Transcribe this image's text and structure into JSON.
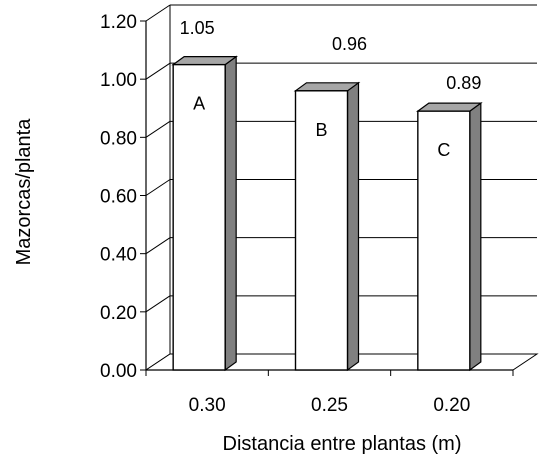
{
  "chart_data": {
    "type": "bar",
    "style": "3d-column",
    "categories": [
      "0.30",
      "0.25",
      "0.20"
    ],
    "values": [
      1.05,
      0.96,
      0.89
    ],
    "value_labels": [
      "1.05",
      "0.96",
      "0.89"
    ],
    "letters": [
      "A",
      "B",
      "C"
    ],
    "xlabel": "Distancia entre plantas (m)",
    "ylabel": "Mazorcas/planta",
    "ylim": [
      0,
      1.2
    ],
    "yticks": [
      "0.00",
      "0.20",
      "0.40",
      "0.60",
      "0.80",
      "1.00",
      "1.20"
    ],
    "grid": true,
    "colors": {
      "bar_front": "#ffffff",
      "bar_side": "#808080",
      "bar_top": "#a6a6a6",
      "outline": "#000000"
    }
  }
}
